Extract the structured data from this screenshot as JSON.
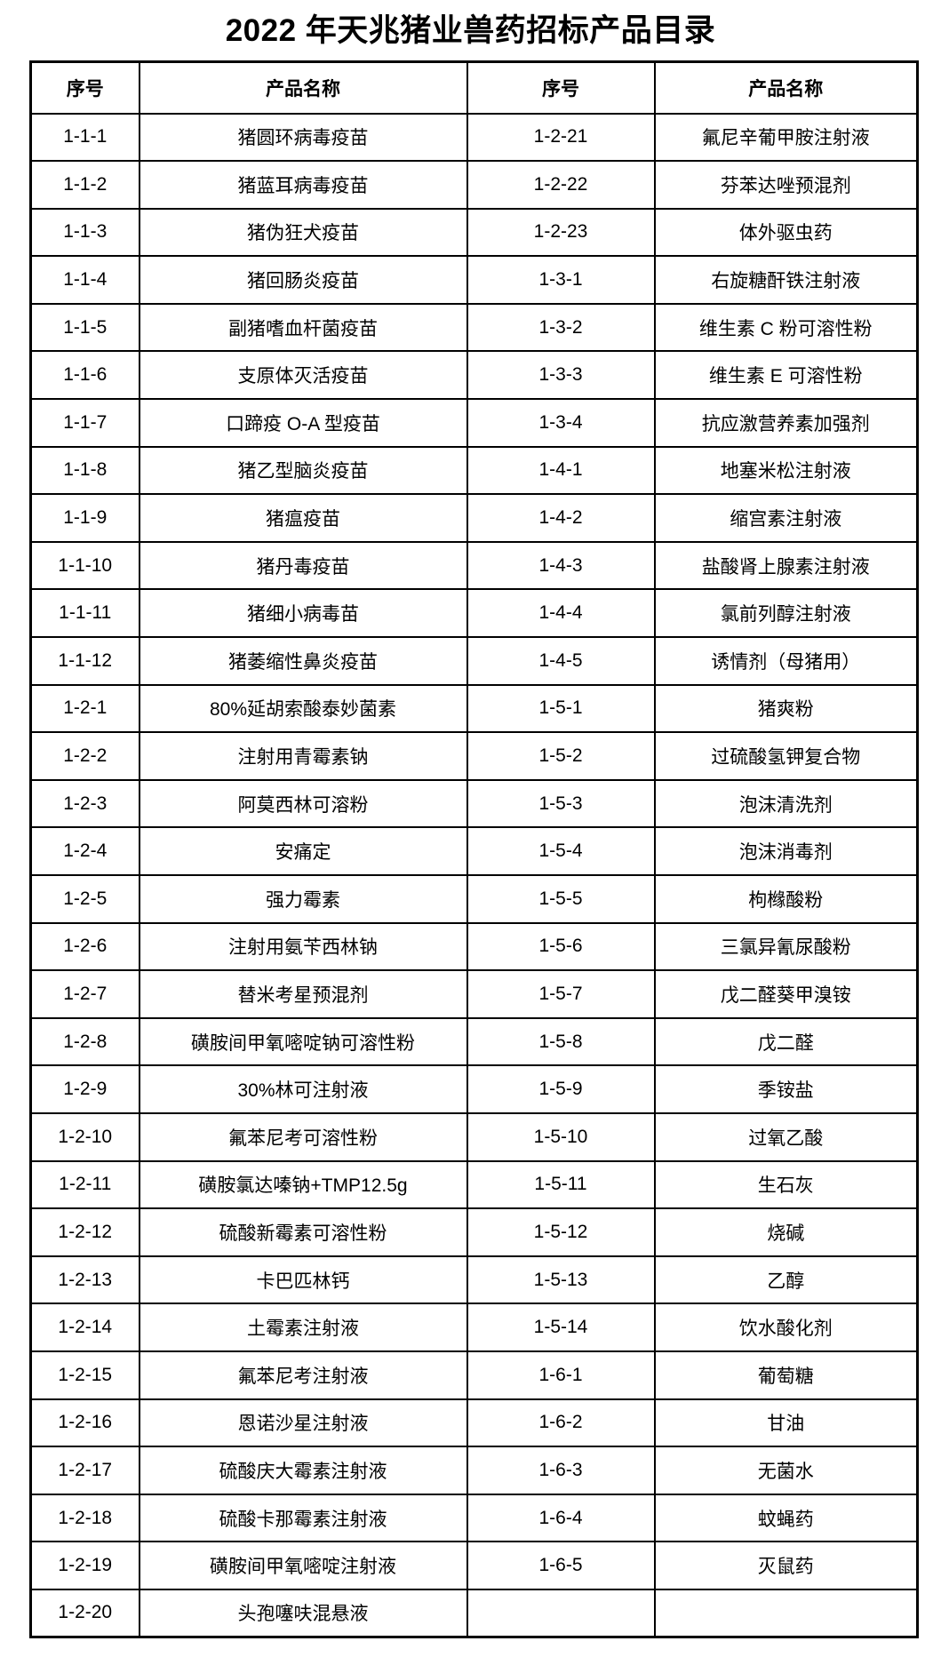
{
  "page": {
    "title": "2022 年天兆猪业兽药招标产品目录"
  },
  "colors": {
    "background": "#ffffff",
    "text": "#000000",
    "border": "#000000"
  },
  "table": {
    "headers": [
      "序号",
      "产品名称",
      "序号",
      "产品名称"
    ],
    "rows": [
      [
        "1-1-1",
        "猪圆环病毒疫苗",
        "1-2-21",
        "氟尼辛葡甲胺注射液"
      ],
      [
        "1-1-2",
        "猪蓝耳病毒疫苗",
        "1-2-22",
        "芬苯达唑预混剂"
      ],
      [
        "1-1-3",
        "猪伪狂犬疫苗",
        "1-2-23",
        "体外驱虫药"
      ],
      [
        "1-1-4",
        "猪回肠炎疫苗",
        "1-3-1",
        "右旋糖酐铁注射液"
      ],
      [
        "1-1-5",
        "副猪嗜血杆菌疫苗",
        "1-3-2",
        "维生素 C 粉可溶性粉"
      ],
      [
        "1-1-6",
        "支原体灭活疫苗",
        "1-3-3",
        "维生素 E 可溶性粉"
      ],
      [
        "1-1-7",
        "口蹄疫 O-A 型疫苗",
        "1-3-4",
        "抗应激营养素加强剂"
      ],
      [
        "1-1-8",
        "猪乙型脑炎疫苗",
        "1-4-1",
        "地塞米松注射液"
      ],
      [
        "1-1-9",
        "猪瘟疫苗",
        "1-4-2",
        "缩宫素注射液"
      ],
      [
        "1-1-10",
        "猪丹毒疫苗",
        "1-4-3",
        "盐酸肾上腺素注射液"
      ],
      [
        "1-1-11",
        "猪细小病毒苗",
        "1-4-4",
        "氯前列醇注射液"
      ],
      [
        "1-1-12",
        "猪萎缩性鼻炎疫苗",
        "1-4-5",
        "诱情剂（母猪用）"
      ],
      [
        "1-2-1",
        "80%延胡索酸泰妙菌素",
        "1-5-1",
        "猪爽粉"
      ],
      [
        "1-2-2",
        "注射用青霉素钠",
        "1-5-2",
        "过硫酸氢钾复合物"
      ],
      [
        "1-2-3",
        "阿莫西林可溶粉",
        "1-5-3",
        "泡沫清洗剂"
      ],
      [
        "1-2-4",
        "安痛定",
        "1-5-4",
        "泡沫消毒剂"
      ],
      [
        "1-2-5",
        "强力霉素",
        "1-5-5",
        "枸橼酸粉"
      ],
      [
        "1-2-6",
        "注射用氨苄西林钠",
        "1-5-6",
        "三氯异氰尿酸粉"
      ],
      [
        "1-2-7",
        "替米考星预混剂",
        "1-5-7",
        "戊二醛葵甲溴铵"
      ],
      [
        "1-2-8",
        "磺胺间甲氧嘧啶钠可溶性粉",
        "1-5-8",
        "戊二醛"
      ],
      [
        "1-2-9",
        "30%林可注射液",
        "1-5-9",
        "季铵盐"
      ],
      [
        "1-2-10",
        "氟苯尼考可溶性粉",
        "1-5-10",
        "过氧乙酸"
      ],
      [
        "1-2-11",
        "磺胺氯达嗪钠+TMP12.5g",
        "1-5-11",
        "生石灰"
      ],
      [
        "1-2-12",
        "硫酸新霉素可溶性粉",
        "1-5-12",
        "烧碱"
      ],
      [
        "1-2-13",
        "卡巴匹林钙",
        "1-5-13",
        "乙醇"
      ],
      [
        "1-2-14",
        "土霉素注射液",
        "1-5-14",
        "饮水酸化剂"
      ],
      [
        "1-2-15",
        "氟苯尼考注射液",
        "1-6-1",
        "葡萄糖"
      ],
      [
        "1-2-16",
        "恩诺沙星注射液",
        "1-6-2",
        "甘油"
      ],
      [
        "1-2-17",
        "硫酸庆大霉素注射液",
        "1-6-3",
        "无菌水"
      ],
      [
        "1-2-18",
        "硫酸卡那霉素注射液",
        "1-6-4",
        "蚊蝇药"
      ],
      [
        "1-2-19",
        "磺胺间甲氧嘧啶注射液",
        "1-6-5",
        "灭鼠药"
      ],
      [
        "1-2-20",
        "头孢噻呋混悬液",
        "",
        ""
      ]
    ]
  }
}
